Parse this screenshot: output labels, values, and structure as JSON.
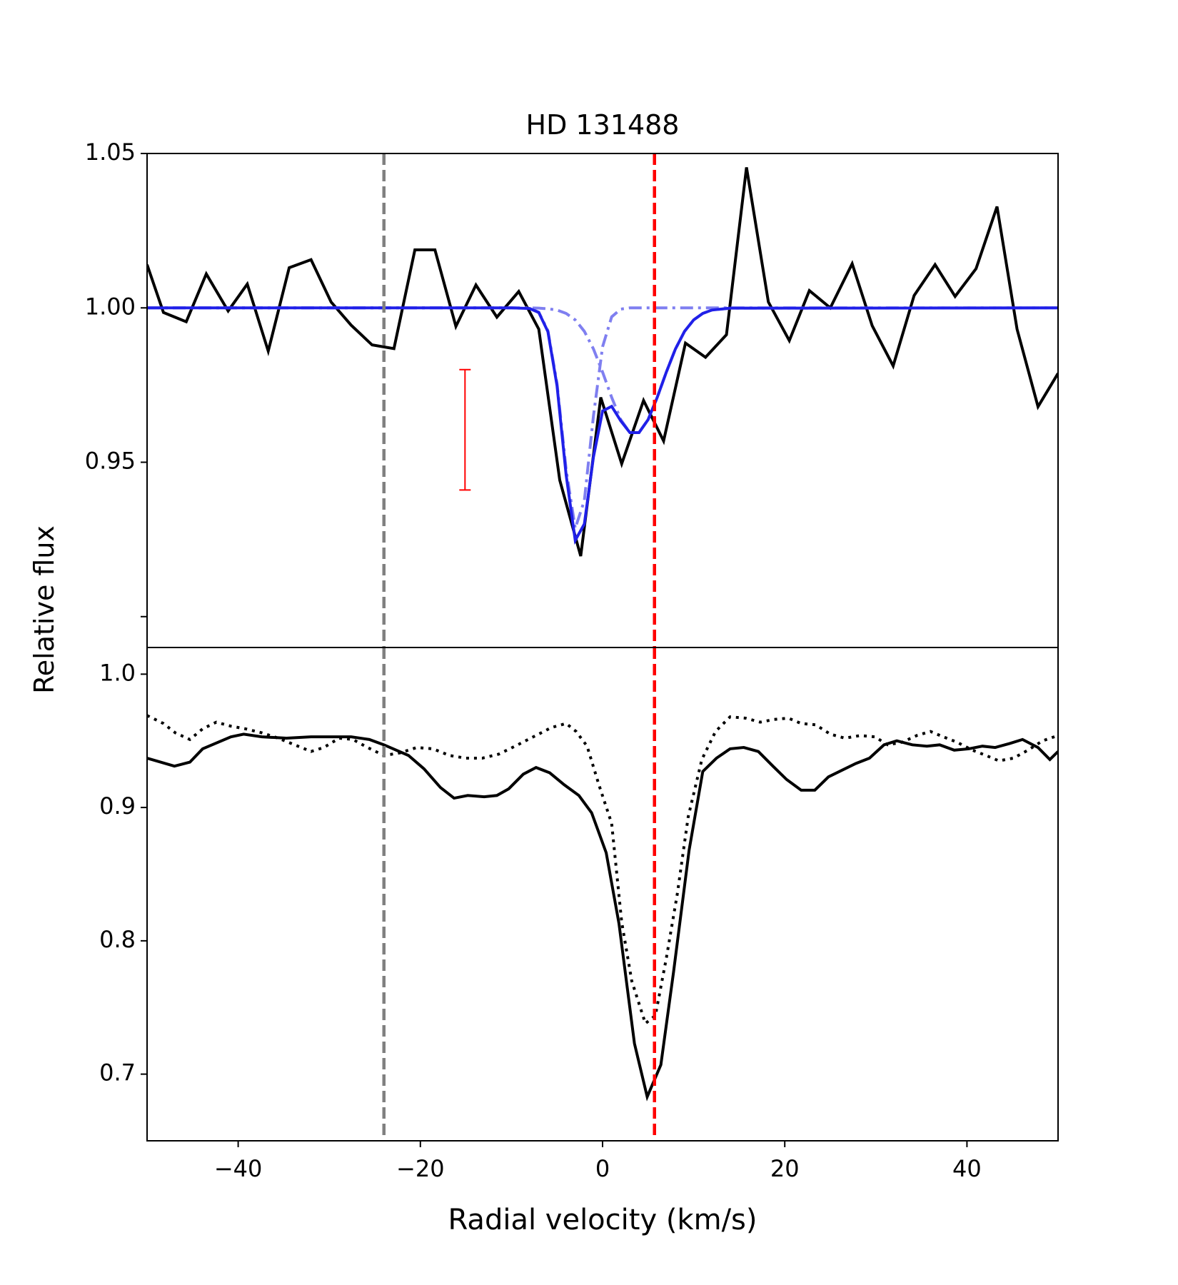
{
  "chart_data": [
    {
      "type": "line",
      "title": "HD 131488",
      "ylabel": "Relative flux",
      "xlim": [
        -50,
        50
      ],
      "ylim": [
        0.89,
        1.05
      ],
      "yticks": [
        {
          "value": 0.9,
          "label": null
        },
        0.95,
        {
          "value": 1,
          "label": "1.00"
        },
        1.05
      ],
      "vlines": [
        {
          "x": -24,
          "color": "#808080"
        },
        {
          "x": 5.7,
          "color": "#ff0000"
        }
      ],
      "errorbar": {
        "x": -15.1,
        "y": 0.9605,
        "yerr": 0.0195,
        "color": "#ff0000"
      },
      "series": [
        {
          "color": "#000000",
          "style": "solid",
          "x": [
            -50,
            -48.2,
            -45.7,
            -43.5,
            -41.1,
            -39.0,
            -36.7,
            -34.4,
            -32.0,
            -29.8,
            -27.6,
            -25.3,
            -22.9,
            -20.6,
            -18.4,
            -16.1,
            -13.9,
            -11.6,
            -9.2,
            -7.0,
            -4.7,
            -2.4,
            -0.2,
            2.1,
            4.5,
            6.7,
            9.1,
            11.3,
            13.6,
            15.8,
            18.2,
            20.5,
            22.7,
            25.0,
            27.4,
            29.6,
            31.9,
            34.2,
            36.5,
            38.7,
            41.0,
            43.3,
            45.5,
            47.8,
            50
          ],
          "values": [
            1.014,
            0.9985,
            0.9955,
            1.011,
            0.999,
            1.0077,
            0.986,
            1.013,
            1.0156,
            1.0019,
            0.9944,
            0.988,
            0.9868,
            1.0188,
            1.0188,
            0.994,
            1.0074,
            0.997,
            1.0053,
            0.9931,
            0.9442,
            0.9196,
            0.971,
            0.9495,
            0.97,
            0.9569,
            0.9886,
            0.984,
            0.9913,
            1.0455,
            1.0019,
            0.9894,
            1.0056,
            1.0,
            1.0143,
            0.9942,
            0.9812,
            1.004,
            1.014,
            1.0037,
            1.0127,
            1.0328,
            0.9931,
            0.968,
            0.9788
          ]
        },
        {
          "color": "#7f7ff0",
          "style": "dashdot",
          "x": [
            -50,
            -12,
            -10,
            -8,
            -7,
            -6,
            -5,
            -4,
            -3,
            -2,
            -1,
            0,
            1,
            2,
            3,
            4,
            5,
            6,
            7,
            8,
            9,
            10,
            11,
            12,
            14,
            50
          ],
          "values": [
            1,
            1,
            1,
            0.9998,
            0.9986,
            0.9926,
            0.9755,
            0.9477,
            0.9286,
            0.9376,
            0.965,
            0.9874,
            0.9971,
            0.9996,
            1,
            1,
            1,
            1,
            1,
            1,
            1,
            1,
            1,
            1,
            1,
            1
          ]
        },
        {
          "color": "#7f7ff0",
          "style": "dashdot",
          "x": [
            -50,
            -12,
            -10,
            -8,
            -7,
            -6,
            -5,
            -4,
            -3,
            -2,
            -1,
            0,
            1,
            2,
            3,
            4,
            5,
            6,
            7,
            8,
            9,
            10,
            11,
            12,
            14,
            50
          ],
          "values": [
            1,
            1,
            1,
            1,
            0.9999,
            0.9997,
            0.9993,
            0.9982,
            0.9961,
            0.9924,
            0.9867,
            0.9792,
            0.971,
            0.9638,
            0.9596,
            0.9596,
            0.9638,
            0.971,
            0.9792,
            0.9867,
            0.9924,
            0.9961,
            0.9982,
            0.9993,
            0.9999,
            1
          ]
        },
        {
          "color": "#2020e8",
          "style": "solid",
          "x": [
            -50,
            -12,
            -10,
            -8,
            -7,
            -6,
            -5,
            -4,
            -3,
            -2,
            -1,
            0,
            1,
            2,
            3,
            4,
            5,
            6,
            7,
            8,
            9,
            10,
            11,
            12,
            14,
            50
          ],
          "values": [
            1,
            1,
            1,
            0.9998,
            0.9985,
            0.9923,
            0.9748,
            0.9459,
            0.9247,
            0.93,
            0.9517,
            0.9666,
            0.9681,
            0.9634,
            0.9596,
            0.9596,
            0.9638,
            0.971,
            0.9792,
            0.9867,
            0.9924,
            0.9961,
            0.9982,
            0.9993,
            0.9999,
            1
          ]
        }
      ]
    },
    {
      "type": "line",
      "xlabel": "Radial velocity (km/s)",
      "xlim": [
        -50,
        50
      ],
      "ylim": [
        0.65,
        1.02
      ],
      "xticks": [
        {
          "value": -40,
          "label": "−40"
        },
        {
          "value": -20,
          "label": "−20"
        },
        0,
        20,
        40
      ],
      "yticks": [
        0.7,
        0.8,
        0.9,
        {
          "value": 1,
          "label": "1.0"
        }
      ],
      "vlines": [
        {
          "x": -24,
          "color": "#808080"
        },
        {
          "x": 5.7,
          "color": "#ff0000"
        }
      ],
      "series": [
        {
          "color": "#000000",
          "style": "solid",
          "x": [
            -50,
            -47.0,
            -45.3,
            -43.9,
            -40.8,
            -39.4,
            -37.4,
            -34.7,
            -32.0,
            -27.6,
            -25.6,
            -24,
            -21.3,
            -19.6,
            -17.8,
            -16.3,
            -14.8,
            -13.0,
            -11.6,
            -10.3,
            -8.7,
            -7.3,
            -5.8,
            -4.2,
            -2.6,
            -1.2,
            0.4,
            1.8,
            3.5,
            4.9,
            6.4,
            7.8,
            9.5,
            11.0,
            12.5,
            14.0,
            15.5,
            17.1,
            18.7,
            20.2,
            21.8,
            23.3,
            24.8,
            26.3,
            27.8,
            29.3,
            30.9,
            32.3,
            34.0,
            35.6,
            37.0,
            38.6,
            40.2,
            41.7,
            43.1,
            44.7,
            46.1,
            47.8,
            49.1,
            50
          ],
          "values": [
            0.937,
            0.931,
            0.934,
            0.944,
            0.953,
            0.955,
            0.953,
            0.952,
            0.953,
            0.953,
            0.951,
            0.947,
            0.939,
            0.929,
            0.915,
            0.907,
            0.909,
            0.908,
            0.909,
            0.914,
            0.925,
            0.93,
            0.926,
            0.917,
            0.909,
            0.896,
            0.866,
            0.813,
            0.723,
            0.683,
            0.707,
            0.777,
            0.868,
            0.927,
            0.937,
            0.944,
            0.945,
            0.942,
            0.931,
            0.921,
            0.913,
            0.913,
            0.923,
            0.928,
            0.933,
            0.937,
            0.947,
            0.95,
            0.947,
            0.946,
            0.947,
            0.943,
            0.944,
            0.946,
            0.945,
            0.948,
            0.951,
            0.945,
            0.936,
            0.942
          ]
        },
        {
          "color": "#000000",
          "style": "dotted",
          "x": [
            -50,
            -48.2,
            -46.9,
            -45.3,
            -43.9,
            -42.4,
            -40.8,
            -39.2,
            -37.4,
            -35.6,
            -33.8,
            -32.0,
            -30.6,
            -28.9,
            -27.4,
            -25.8,
            -24,
            -22.2,
            -20.4,
            -18.6,
            -16.8,
            -15.0,
            -13.2,
            -11.4,
            -9.6,
            -7.6,
            -5.6,
            -4.0,
            -2.9,
            -1.7,
            -0.4,
            1.0,
            2.1,
            3.2,
            4.7,
            5.8,
            7.0,
            8.2,
            9.4,
            10.9,
            12.4,
            14.0,
            15.7,
            17.3,
            18.8,
            20.4,
            21.8,
            23.4,
            25.0,
            26.6,
            28.3,
            29.9,
            31.3,
            32.9,
            34.5,
            36.0,
            37.4,
            38.9,
            40.6,
            42.1,
            43.5,
            45.1,
            46.7,
            48.3,
            50
          ],
          "values": [
            0.969,
            0.963,
            0.956,
            0.951,
            0.959,
            0.964,
            0.961,
            0.959,
            0.956,
            0.952,
            0.947,
            0.942,
            0.945,
            0.952,
            0.951,
            0.945,
            0.939,
            0.941,
            0.945,
            0.944,
            0.939,
            0.937,
            0.937,
            0.94,
            0.946,
            0.953,
            0.96,
            0.963,
            0.957,
            0.946,
            0.917,
            0.888,
            0.814,
            0.77,
            0.738,
            0.744,
            0.787,
            0.835,
            0.893,
            0.936,
            0.957,
            0.968,
            0.967,
            0.964,
            0.966,
            0.967,
            0.963,
            0.962,
            0.955,
            0.952,
            0.954,
            0.953,
            0.947,
            0.949,
            0.954,
            0.957,
            0.953,
            0.949,
            0.943,
            0.939,
            0.935,
            0.937,
            0.943,
            0.95,
            0.954
          ]
        }
      ]
    }
  ]
}
